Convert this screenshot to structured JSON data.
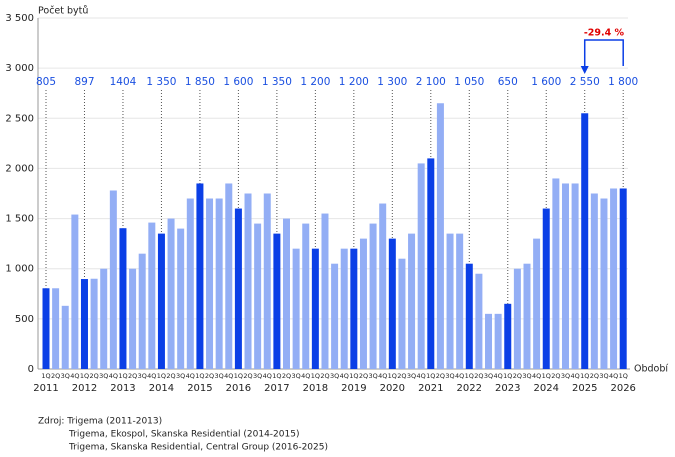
{
  "chart_data": {
    "type": "bar",
    "y_label": "Počet bytů",
    "x_label": "Období",
    "categories": [
      "1Q",
      "2Q",
      "3Q",
      "4Q",
      "1Q",
      "2Q",
      "3Q",
      "4Q",
      "1Q",
      "2Q",
      "3Q",
      "4Q",
      "1Q",
      "2Q",
      "3Q",
      "4Q",
      "1Q",
      "2Q",
      "3Q",
      "4Q",
      "1Q",
      "2Q",
      "3Q",
      "4Q",
      "1Q",
      "2Q",
      "3Q",
      "4Q",
      "1Q",
      "2Q",
      "3Q",
      "4Q",
      "1Q",
      "2Q",
      "3Q",
      "4Q",
      "1Q",
      "2Q",
      "3Q",
      "4Q",
      "1Q",
      "2Q",
      "3Q",
      "4Q",
      "1Q",
      "2Q",
      "3Q",
      "4Q",
      "1Q",
      "2Q",
      "3Q",
      "4Q",
      "1Q",
      "2Q",
      "3Q",
      "4Q",
      "1Q",
      "2Q",
      "3Q",
      "4Q",
      "1Q"
    ],
    "years": [
      "2011",
      "2012",
      "2013",
      "2014",
      "2015",
      "2016",
      "2017",
      "2018",
      "2019",
      "2020",
      "2021",
      "2022",
      "2023",
      "2024",
      "2025",
      "2026"
    ],
    "values": [
      805,
      805,
      630,
      1540,
      897,
      900,
      1000,
      1780,
      1404,
      1000,
      1150,
      1460,
      1350,
      1500,
      1400,
      1700,
      1850,
      1700,
      1700,
      1850,
      1600,
      1750,
      1450,
      1750,
      1350,
      1500,
      1200,
      1450,
      1200,
      1550,
      1050,
      1200,
      1200,
      1300,
      1450,
      1650,
      1300,
      1100,
      1350,
      2050,
      2100,
      2650,
      1350,
      1350,
      1050,
      950,
      550,
      550,
      650,
      1000,
      1050,
      1300,
      1600,
      1900,
      1850,
      1850,
      2550,
      1750,
      1700,
      1800,
      1800
    ],
    "value_labels": [
      "805",
      null,
      null,
      null,
      "897",
      null,
      null,
      null,
      "1404",
      null,
      null,
      null,
      "1 350",
      null,
      null,
      null,
      "1 850",
      null,
      null,
      null,
      "1 600",
      null,
      null,
      null,
      "1 350",
      null,
      null,
      null,
      "1 200",
      null,
      null,
      null,
      "1 200",
      null,
      null,
      null,
      "1 300",
      null,
      null,
      null,
      "2 100",
      null,
      null,
      null,
      "1 050",
      null,
      null,
      null,
      "650",
      null,
      null,
      null,
      "1 600",
      null,
      null,
      null,
      "2 550",
      null,
      null,
      null,
      "1 800"
    ],
    "color": "#93aef5",
    "highlight_color": "#0b3fe6",
    "ylim": [
      0,
      3500
    ],
    "yticks": [
      0,
      {
        "value": 500,
        "label": "500"
      },
      {
        "value": 1000,
        "label": "1 000"
      },
      {
        "value": 1500,
        "label": "1 500"
      },
      {
        "value": 2000,
        "label": "2 000"
      },
      {
        "value": 2500,
        "label": "2 500"
      },
      {
        "value": 3000,
        "label": "3 000"
      },
      {
        "value": 3500,
        "label": "3 500"
      }
    ],
    "grid": true,
    "annotation": "-29.4 %",
    "source": [
      "Zdroj: Trigema (2011-2013)",
      "Trigema, Ekospol, Skanska Residential (2014-2015)",
      "Trigema, Skanska Residential, Central Group (2016-2025)"
    ]
  }
}
